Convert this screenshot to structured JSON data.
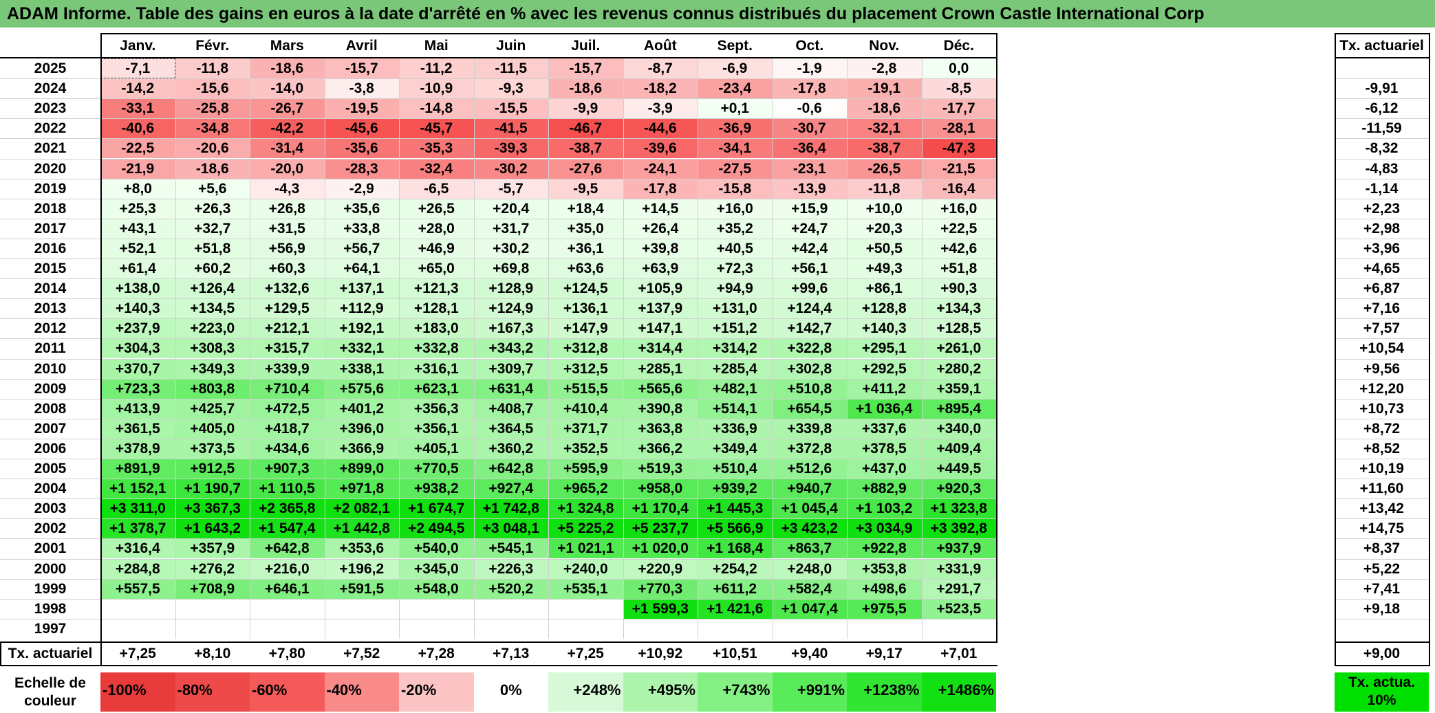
{
  "title": "ADAM Informe. Table des gains en euros à la date d'arrêté en % avec les revenus connus distribués du placement Crown Castle International Corp",
  "months": [
    "Janv.",
    "Févr.",
    "Mars",
    "Avril",
    "Mai",
    "Juin",
    "Juil.",
    "Août",
    "Sept.",
    "Oct.",
    "Nov.",
    "Déc."
  ],
  "rate_column_header": "Tx. actuariel",
  "rows": [
    {
      "year": "2025",
      "values": [
        "-7,1",
        "-11,8",
        "-18,6",
        "-15,7",
        "-11,2",
        "-11,5",
        "-15,7",
        "-8,7",
        "-6,9",
        "-1,9",
        "-2,8",
        "0,0"
      ],
      "rate": ""
    },
    {
      "year": "2024",
      "values": [
        "-14,2",
        "-15,6",
        "-14,0",
        "-3,8",
        "-10,9",
        "-9,3",
        "-18,6",
        "-18,2",
        "-23,4",
        "-17,8",
        "-19,1",
        "-8,5"
      ],
      "rate": "-9,91"
    },
    {
      "year": "2023",
      "values": [
        "-33,1",
        "-25,8",
        "-26,7",
        "-19,5",
        "-14,8",
        "-15,5",
        "-9,9",
        "-3,9",
        "+0,1",
        "-0,6",
        "-18,6",
        "-17,7"
      ],
      "rate": "-6,12"
    },
    {
      "year": "2022",
      "values": [
        "-40,6",
        "-34,8",
        "-42,2",
        "-45,6",
        "-45,7",
        "-41,5",
        "-46,7",
        "-44,6",
        "-36,9",
        "-30,7",
        "-32,1",
        "-28,1"
      ],
      "rate": "-11,59"
    },
    {
      "year": "2021",
      "values": [
        "-22,5",
        "-20,6",
        "-31,4",
        "-35,6",
        "-35,3",
        "-39,3",
        "-38,7",
        "-39,6",
        "-34,1",
        "-36,4",
        "-38,7",
        "-47,3"
      ],
      "rate": "-8,32"
    },
    {
      "year": "2020",
      "values": [
        "-21,9",
        "-18,6",
        "-20,0",
        "-28,3",
        "-32,4",
        "-30,2",
        "-27,6",
        "-24,1",
        "-27,5",
        "-23,1",
        "-26,5",
        "-21,5"
      ],
      "rate": "-4,83"
    },
    {
      "year": "2019",
      "values": [
        "+8,0",
        "+5,6",
        "-4,3",
        "-2,9",
        "-6,5",
        "-5,7",
        "-9,5",
        "-17,8",
        "-15,8",
        "-13,9",
        "-11,8",
        "-16,4"
      ],
      "rate": "-1,14"
    },
    {
      "year": "2018",
      "values": [
        "+25,3",
        "+26,3",
        "+26,8",
        "+35,6",
        "+26,5",
        "+20,4",
        "+18,4",
        "+14,5",
        "+16,0",
        "+15,9",
        "+10,0",
        "+16,0"
      ],
      "rate": "+2,23"
    },
    {
      "year": "2017",
      "values": [
        "+43,1",
        "+32,7",
        "+31,5",
        "+33,8",
        "+28,0",
        "+31,7",
        "+35,0",
        "+26,4",
        "+35,2",
        "+24,7",
        "+20,3",
        "+22,5"
      ],
      "rate": "+2,98"
    },
    {
      "year": "2016",
      "values": [
        "+52,1",
        "+51,8",
        "+56,9",
        "+56,7",
        "+46,9",
        "+30,2",
        "+36,1",
        "+39,8",
        "+40,5",
        "+42,4",
        "+50,5",
        "+42,6"
      ],
      "rate": "+3,96"
    },
    {
      "year": "2015",
      "values": [
        "+61,4",
        "+60,2",
        "+60,3",
        "+64,1",
        "+65,0",
        "+69,8",
        "+63,6",
        "+63,9",
        "+72,3",
        "+56,1",
        "+49,3",
        "+51,8"
      ],
      "rate": "+4,65"
    },
    {
      "year": "2014",
      "values": [
        "+138,0",
        "+126,4",
        "+132,6",
        "+137,1",
        "+121,3",
        "+128,9",
        "+124,5",
        "+105,9",
        "+94,9",
        "+99,6",
        "+86,1",
        "+90,3"
      ],
      "rate": "+6,87"
    },
    {
      "year": "2013",
      "values": [
        "+140,3",
        "+134,5",
        "+129,5",
        "+112,9",
        "+128,1",
        "+124,9",
        "+136,1",
        "+137,9",
        "+131,0",
        "+124,4",
        "+128,8",
        "+134,3"
      ],
      "rate": "+7,16"
    },
    {
      "year": "2012",
      "values": [
        "+237,9",
        "+223,0",
        "+212,1",
        "+192,1",
        "+183,0",
        "+167,3",
        "+147,9",
        "+147,1",
        "+151,2",
        "+142,7",
        "+140,3",
        "+128,5"
      ],
      "rate": "+7,57"
    },
    {
      "year": "2011",
      "values": [
        "+304,3",
        "+308,3",
        "+315,7",
        "+332,1",
        "+332,8",
        "+343,2",
        "+312,8",
        "+314,4",
        "+314,2",
        "+322,8",
        "+295,1",
        "+261,0"
      ],
      "rate": "+10,54"
    },
    {
      "year": "2010",
      "values": [
        "+370,7",
        "+349,3",
        "+339,9",
        "+338,1",
        "+316,1",
        "+309,7",
        "+312,5",
        "+285,1",
        "+285,4",
        "+302,8",
        "+292,5",
        "+280,2"
      ],
      "rate": "+9,56"
    },
    {
      "year": "2009",
      "values": [
        "+723,3",
        "+803,8",
        "+710,4",
        "+575,6",
        "+623,1",
        "+631,4",
        "+515,5",
        "+565,6",
        "+482,1",
        "+510,8",
        "+411,2",
        "+359,1"
      ],
      "rate": "+12,20"
    },
    {
      "year": "2008",
      "values": [
        "+413,9",
        "+425,7",
        "+472,5",
        "+401,2",
        "+356,3",
        "+408,7",
        "+410,4",
        "+390,8",
        "+514,1",
        "+654,5",
        "+1 036,4",
        "+895,4"
      ],
      "rate": "+10,73"
    },
    {
      "year": "2007",
      "values": [
        "+361,5",
        "+405,0",
        "+418,7",
        "+396,0",
        "+356,1",
        "+364,5",
        "+371,7",
        "+363,8",
        "+336,9",
        "+339,8",
        "+337,6",
        "+340,0"
      ],
      "rate": "+8,72"
    },
    {
      "year": "2006",
      "values": [
        "+378,9",
        "+373,5",
        "+434,6",
        "+366,9",
        "+405,1",
        "+360,2",
        "+352,5",
        "+366,2",
        "+349,4",
        "+372,8",
        "+378,5",
        "+409,4"
      ],
      "rate": "+8,52"
    },
    {
      "year": "2005",
      "values": [
        "+891,9",
        "+912,5",
        "+907,3",
        "+899,0",
        "+770,5",
        "+642,8",
        "+595,9",
        "+519,3",
        "+510,4",
        "+512,6",
        "+437,0",
        "+449,5"
      ],
      "rate": "+10,19"
    },
    {
      "year": "2004",
      "values": [
        "+1 152,1",
        "+1 190,7",
        "+1 110,5",
        "+971,8",
        "+938,2",
        "+927,4",
        "+965,2",
        "+958,0",
        "+939,2",
        "+940,7",
        "+882,9",
        "+920,3"
      ],
      "rate": "+11,60"
    },
    {
      "year": "2003",
      "values": [
        "+3 311,0",
        "+3 367,3",
        "+2 365,8",
        "+2 082,1",
        "+1 674,7",
        "+1 742,8",
        "+1 324,8",
        "+1 170,4",
        "+1 445,3",
        "+1 045,4",
        "+1 103,2",
        "+1 323,8"
      ],
      "rate": "+13,42"
    },
    {
      "year": "2002",
      "values": [
        "+1 378,7",
        "+1 643,2",
        "+1 547,4",
        "+1 442,8",
        "+2 494,5",
        "+3 048,1",
        "+5 225,2",
        "+5 237,7",
        "+5 566,9",
        "+3 423,2",
        "+3 034,9",
        "+3 392,8"
      ],
      "rate": "+14,75"
    },
    {
      "year": "2001",
      "values": [
        "+316,4",
        "+357,9",
        "+642,8",
        "+353,6",
        "+540,0",
        "+545,1",
        "+1 021,1",
        "+1 020,0",
        "+1 168,4",
        "+863,7",
        "+922,8",
        "+937,9"
      ],
      "rate": "+8,37"
    },
    {
      "year": "2000",
      "values": [
        "+284,8",
        "+276,2",
        "+216,0",
        "+196,2",
        "+345,0",
        "+226,3",
        "+240,0",
        "+220,9",
        "+254,2",
        "+248,0",
        "+353,8",
        "+331,9"
      ],
      "rate": "+5,22"
    },
    {
      "year": "1999",
      "values": [
        "+557,5",
        "+708,9",
        "+646,1",
        "+591,5",
        "+548,0",
        "+520,2",
        "+535,1",
        "+770,3",
        "+611,2",
        "+582,4",
        "+498,6",
        "+291,7"
      ],
      "rate": "+7,41"
    },
    {
      "year": "1998",
      "values": [
        "",
        "",
        "",
        "",
        "",
        "",
        "",
        "+1 599,3",
        "+1 421,6",
        "+1 047,4",
        "+975,5",
        "+523,5"
      ],
      "rate": "+9,18"
    },
    {
      "year": "1997",
      "values": [
        "",
        "",
        "",
        "",
        "",
        "",
        "",
        "",
        "",
        "",
        "",
        ""
      ],
      "rate": ""
    }
  ],
  "annual_rate_row": {
    "label": "Tx. actuariel",
    "values": [
      "+7,25",
      "+8,10",
      "+7,80",
      "+7,52",
      "+7,28",
      "+7,13",
      "+7,25",
      "+10,92",
      "+10,51",
      "+9,40",
      "+9,17",
      "+7,01"
    ],
    "overall": "+9,00"
  },
  "color_scale": {
    "label": "Echelle de couleur",
    "items": [
      {
        "text": "-100%",
        "color": "#e83c3c",
        "align": "left"
      },
      {
        "text": "-80%",
        "color": "#ef4a4a",
        "align": "left"
      },
      {
        "text": "-60%",
        "color": "#f45a5a",
        "align": "left"
      },
      {
        "text": "-40%",
        "color": "#f98a8a",
        "align": "left"
      },
      {
        "text": "-20%",
        "color": "#fcc4c4",
        "align": "left"
      },
      {
        "text": "0%",
        "color": "#ffffff",
        "align": "center"
      },
      {
        "text": "+248%",
        "color": "#d7f9d7",
        "align": "right"
      },
      {
        "text": "+495%",
        "color": "#adf5ad",
        "align": "right"
      },
      {
        "text": "+743%",
        "color": "#84f084",
        "align": "right"
      },
      {
        "text": "+991%",
        "color": "#5aeb5a",
        "align": "right"
      },
      {
        "text": "+1238%",
        "color": "#33e533",
        "align": "right"
      },
      {
        "text": "+1486%",
        "color": "#12e012",
        "align": "right"
      }
    ],
    "box_label": "Tx. actua. 10%",
    "box_color": "#00e000"
  }
}
